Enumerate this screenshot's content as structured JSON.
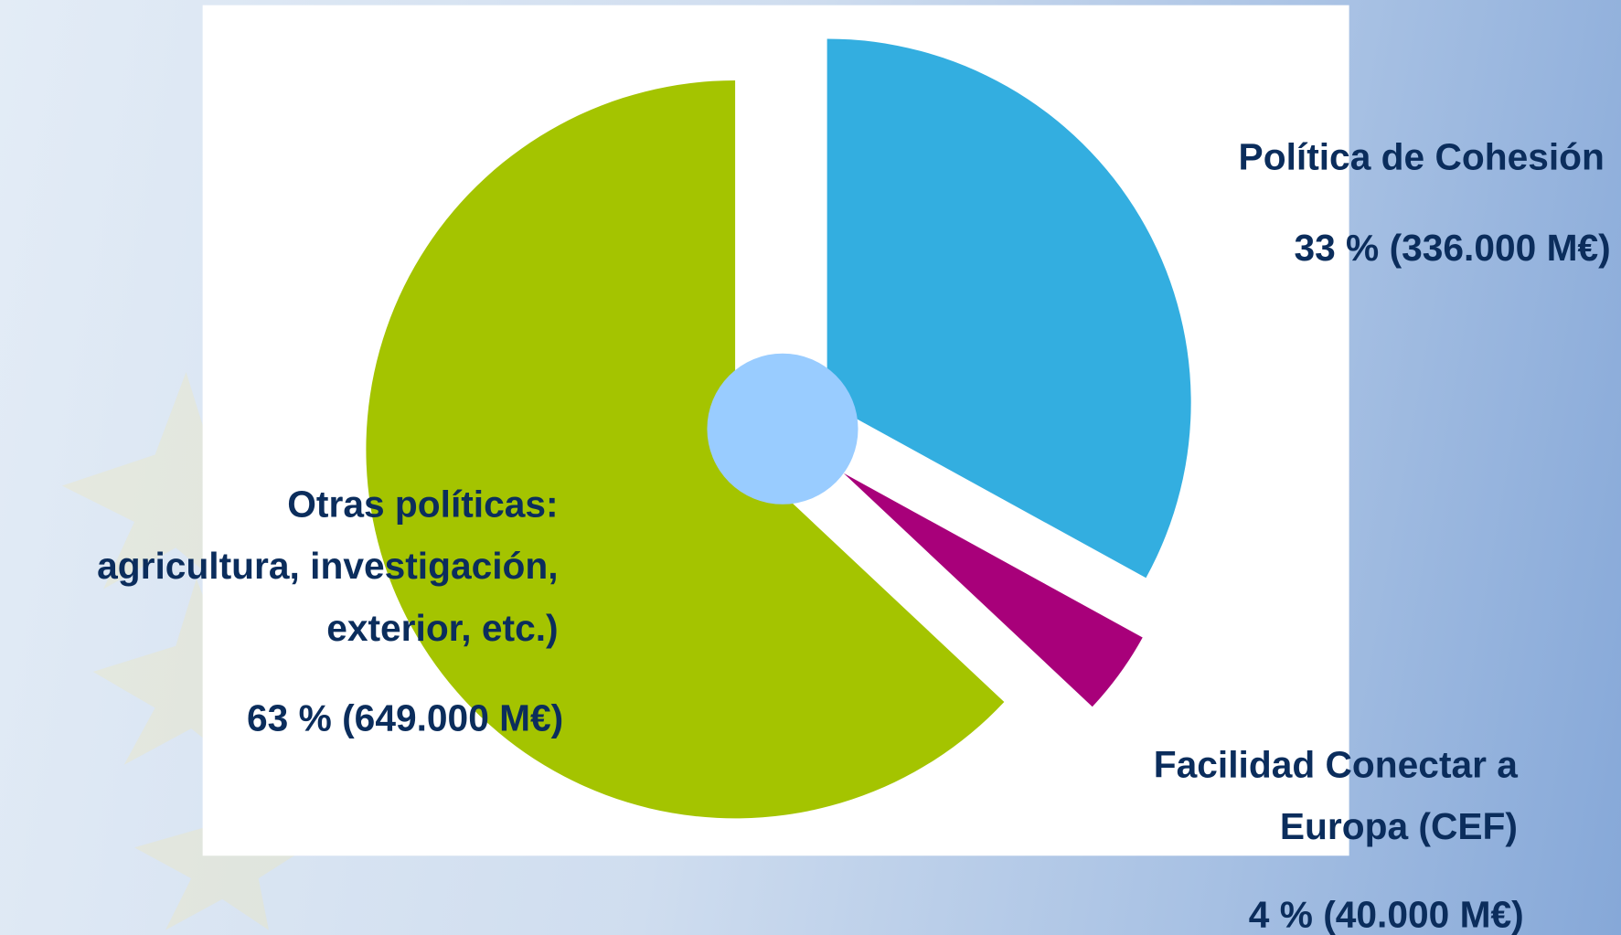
{
  "chart_data": {
    "type": "pie",
    "categories": [
      "Política de Cohesión",
      "Facilidad Conectar a\nEuropa (CEF)",
      "Otras políticas:\nagricultura, investigación,\nexterior, etc.)"
    ],
    "values": [
      33,
      4,
      63
    ],
    "value_labels": [
      "33 % (336.000 M€)",
      "4 % (40.000 M€)",
      "63 % (649.000 M€)"
    ],
    "colors": [
      "#33aee0",
      "#a8007a",
      "#a4c400"
    ]
  }
}
